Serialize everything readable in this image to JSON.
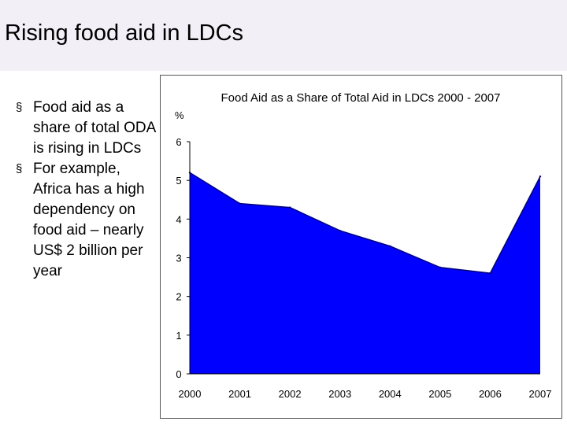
{
  "slide": {
    "title": "Rising food aid in LDCs",
    "bullets": [
      "Food aid as a share of total ODA is rising in LDCs",
      "For example, Africa has a high dependency on food aid – nearly US$ 2 billion per year"
    ],
    "bullet_icon": "square-bullet-icon"
  },
  "chart_data": {
    "type": "area",
    "title": "Food Aid as a Share of Total Aid in LDCs 2000 - 2007",
    "ylabel": "%",
    "xlabel": "",
    "x": [
      "2000",
      "2001",
      "2002",
      "2003",
      "2004",
      "2005",
      "2006",
      "2007"
    ],
    "series": [
      {
        "values": [
          5.2,
          4.4,
          4.3,
          3.7,
          3.3,
          2.75,
          2.6,
          5.1
        ]
      }
    ],
    "yticks": [
      "0",
      "1",
      "2",
      "3",
      "4",
      "5",
      "6"
    ],
    "ylim": [
      0,
      6
    ],
    "grid": false,
    "fill_color": "#0000ff",
    "line_color": "#00007a"
  }
}
